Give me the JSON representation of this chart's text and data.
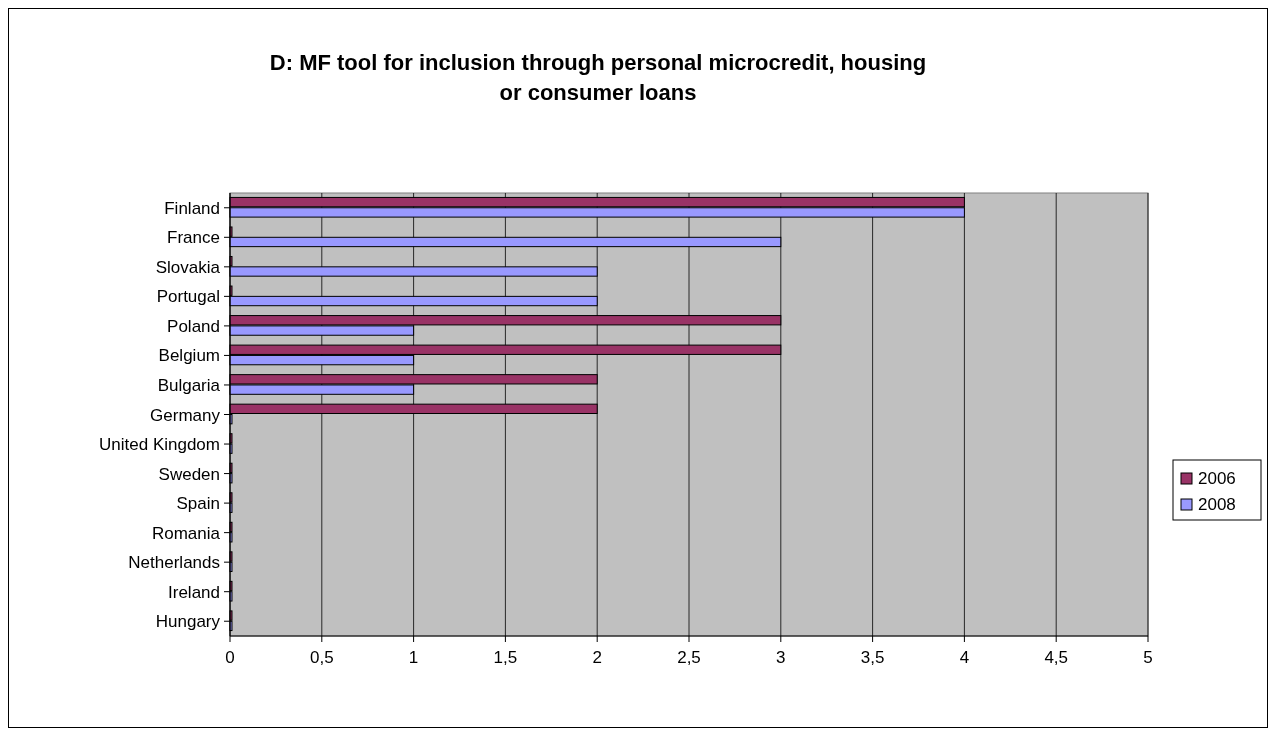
{
  "chart_data": {
    "type": "bar",
    "orientation": "horizontal",
    "title": "D: MF tool for inclusion through personal microcredit, housing or consumer loans",
    "categories": [
      "Finland",
      "France",
      "Slovakia",
      "Portugal",
      "Poland",
      "Belgium",
      "Bulgaria",
      "Germany",
      "United Kingdom",
      "Sweden",
      "Spain",
      "Romania",
      "Netherlands",
      "Ireland",
      "Hungary"
    ],
    "series": [
      {
        "name": "2006",
        "color": "#993366",
        "values": [
          4,
          0,
          0,
          0,
          3,
          3,
          2,
          2,
          0,
          0,
          0,
          0,
          0,
          0,
          0
        ]
      },
      {
        "name": "2008",
        "color": "#9999ff",
        "values": [
          4,
          3,
          2,
          2,
          1,
          1,
          1,
          0,
          0,
          0,
          0,
          0,
          0,
          0,
          0
        ]
      }
    ],
    "xlim": [
      0,
      5
    ],
    "xticks": [
      0,
      {
        "value": 0.5,
        "label": "0,5"
      },
      1,
      {
        "value": 1.5,
        "label": "1,5"
      },
      2,
      {
        "value": 2.5,
        "label": "2,5"
      },
      3,
      {
        "value": 3.5,
        "label": "3,5"
      },
      4,
      {
        "value": 4.5,
        "label": "4,5"
      },
      5
    ],
    "grid": "x",
    "legend": "right"
  }
}
